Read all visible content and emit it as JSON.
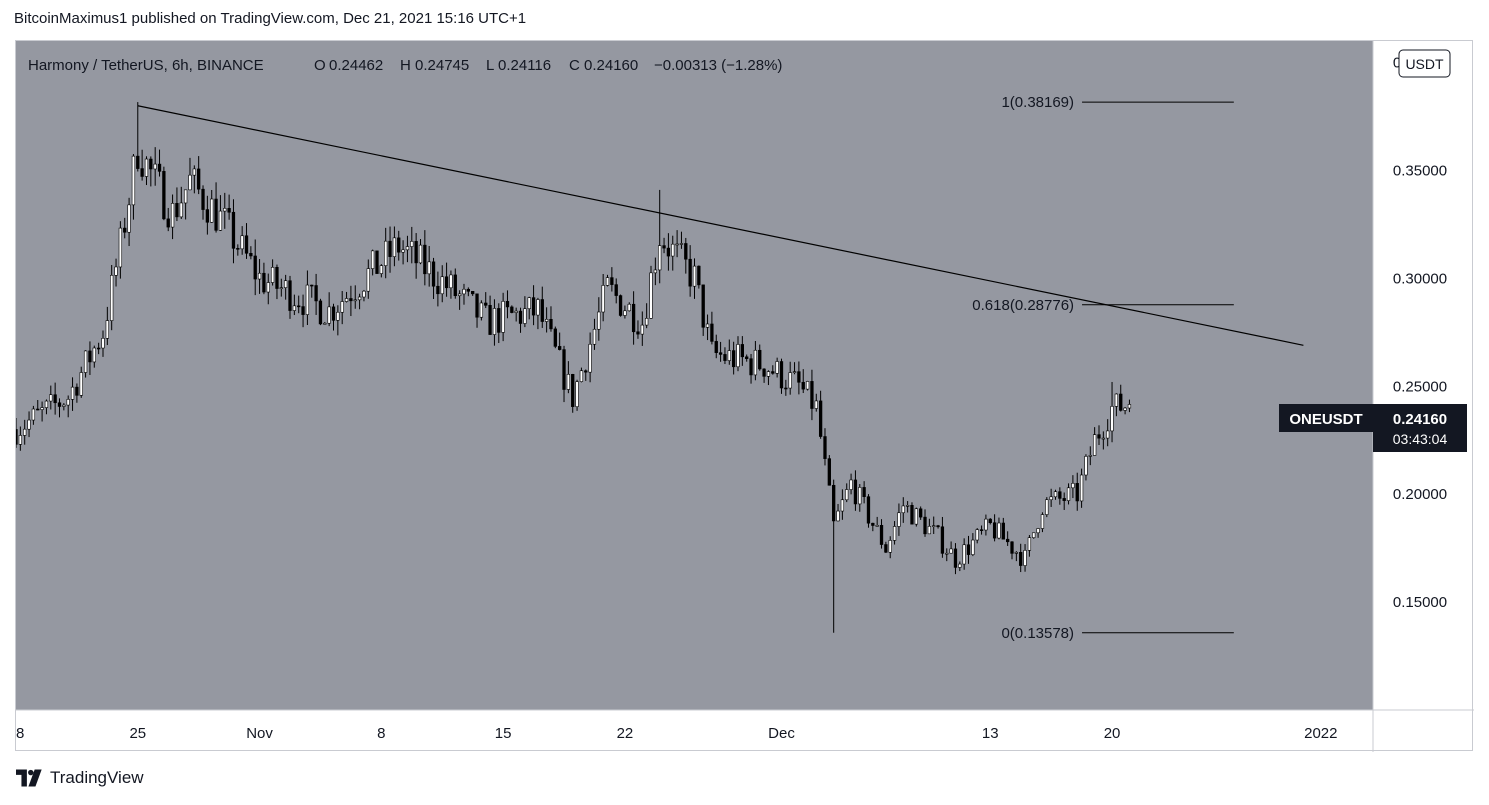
{
  "header": {
    "published_by": "BitcoinMaximus1 published on TradingView.com, Dec 21, 2021 15:16 UTC+1"
  },
  "legend": {
    "symbol_line": "Harmony / TetherUS, 6h, BINANCE",
    "o_label": "O",
    "o_value": "0.24462",
    "h_label": "H",
    "h_value": "0.24745",
    "l_label": "L",
    "l_value": "0.24116",
    "c_label": "C",
    "c_value": "0.24160",
    "change": "−0.00313 (−1.28%)"
  },
  "price_axis": {
    "currency_button": "USDT",
    "ticks": [
      "0.40000",
      "0.35000",
      "0.30000",
      "0.25000",
      "0.20000",
      "0.15000"
    ]
  },
  "time_axis": {
    "ticks": [
      "8",
      "25",
      "Nov",
      "8",
      "15",
      "22",
      "Dec",
      "13",
      "20",
      "2022"
    ]
  },
  "last_price": {
    "symbol": "ONEUSDT",
    "price": "0.24160",
    "countdown": "03:43:04"
  },
  "fib_levels": [
    {
      "label": "1(0.38169)",
      "price": 0.38169
    },
    {
      "label": "0.618(0.28776)",
      "price": 0.28776
    },
    {
      "label": "0(0.13578)",
      "price": 0.13578
    }
  ],
  "trendline": {
    "start": {
      "date": "2021-10-25",
      "price": 0.38
    },
    "end": {
      "date": "2021-12-31",
      "price": 0.269
    }
  },
  "colors": {
    "plot_bg": "#9598a1",
    "candle_up": "#ffffff",
    "candle_down": "#000000",
    "wick": "#000000",
    "line": "#000000",
    "label_bg": "#131722",
    "label_text": "#ffffff"
  },
  "chart_data": {
    "type": "candlestick",
    "interval": "6h",
    "ylim": [
      0.1,
      0.41
    ],
    "xlim": [
      "2021-10-18",
      "2022-01-04"
    ],
    "anchors": [
      {
        "date": "2021-10-18",
        "close": 0.23
      },
      {
        "date": "2021-10-21",
        "close": 0.245
      },
      {
        "date": "2021-10-23",
        "close": 0.275
      },
      {
        "date": "2021-10-24",
        "close": 0.315
      },
      {
        "date": "2021-10-25",
        "close": 0.36
      },
      {
        "date": "2021-10-27",
        "close": 0.33
      },
      {
        "date": "2021-10-28",
        "close": 0.345
      },
      {
        "date": "2021-10-30",
        "close": 0.325
      },
      {
        "date": "2021-11-01",
        "close": 0.3
      },
      {
        "date": "2021-11-05",
        "close": 0.285
      },
      {
        "date": "2021-11-09",
        "close": 0.315
      },
      {
        "date": "2021-11-12",
        "close": 0.295
      },
      {
        "date": "2021-11-14",
        "close": 0.28
      },
      {
        "date": "2021-11-17",
        "close": 0.285
      },
      {
        "date": "2021-11-19",
        "close": 0.245
      },
      {
        "date": "2021-11-21",
        "close": 0.295
      },
      {
        "date": "2021-11-23",
        "close": 0.28
      },
      {
        "date": "2021-11-24",
        "close": 0.32
      },
      {
        "date": "2021-11-26",
        "close": 0.3
      },
      {
        "date": "2021-11-27",
        "close": 0.265
      },
      {
        "date": "2021-11-30",
        "close": 0.26
      },
      {
        "date": "2021-12-02",
        "close": 0.25
      },
      {
        "date": "2021-12-03",
        "close": 0.24
      },
      {
        "date": "2021-12-04",
        "close": 0.185
      },
      {
        "date": "2021-12-05",
        "close": 0.205
      },
      {
        "date": "2021-12-07",
        "close": 0.175
      },
      {
        "date": "2021-12-08",
        "close": 0.195
      },
      {
        "date": "2021-12-10",
        "close": 0.18
      },
      {
        "date": "2021-12-11",
        "close": 0.17
      },
      {
        "date": "2021-12-13",
        "close": 0.185
      },
      {
        "date": "2021-12-15",
        "close": 0.17
      },
      {
        "date": "2021-12-16",
        "close": 0.195
      },
      {
        "date": "2021-12-18",
        "close": 0.2
      },
      {
        "date": "2021-12-19",
        "close": 0.225
      },
      {
        "date": "2021-12-20",
        "close": 0.24
      },
      {
        "date": "2021-12-21",
        "close": 0.2416
      }
    ],
    "spikes": [
      {
        "date": "2021-12-04",
        "low": 0.13578
      },
      {
        "date": "2021-10-25",
        "high": 0.38169
      },
      {
        "date": "2021-11-24",
        "high": 0.341
      },
      {
        "date": "2021-12-20",
        "high": 0.252
      }
    ]
  }
}
